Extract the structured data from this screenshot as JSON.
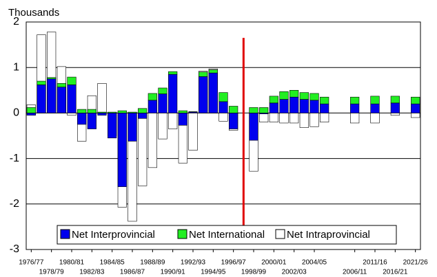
{
  "chart_data": {
    "type": "bar",
    "y_axis_label": "Thousands",
    "categories": [
      "1976/77",
      null,
      "1978/79",
      null,
      "1980/81",
      null,
      "1982/83",
      null,
      "1984/85",
      null,
      "1986/87",
      null,
      "1988/89",
      null,
      "1990/91",
      null,
      "1992/93",
      null,
      "1994/95",
      null,
      "1996/97",
      null,
      "1998/99",
      null,
      "2000/01",
      null,
      "2002/03",
      null,
      "2004/05",
      null,
      null,
      null,
      "2006/11",
      null,
      "2011/16",
      null,
      "2016/21",
      null,
      "2021/26"
    ],
    "series": [
      {
        "name": "Net Interprovincial",
        "color": "#0000ee",
        "values": [
          -0.05,
          0.62,
          0.75,
          0.57,
          0.62,
          -0.25,
          -0.35,
          -0.05,
          -0.55,
          -1.62,
          -0.62,
          -0.12,
          0.28,
          0.42,
          0.85,
          -0.27,
          0.02,
          0.8,
          0.88,
          0.25,
          -0.35,
          null,
          -0.6,
          -0.02,
          0.22,
          0.3,
          0.35,
          0.3,
          0.28,
          0.2,
          null,
          null,
          0.2,
          null,
          0.2,
          null,
          0.22,
          null,
          0.2
        ]
      },
      {
        "name": "Net International",
        "color": "#22ee22",
        "values": [
          0.12,
          0.08,
          0.03,
          0.08,
          0.17,
          0.08,
          0.08,
          0.02,
          0.02,
          0.05,
          0.02,
          0.1,
          0.15,
          0.13,
          0.06,
          0.05,
          0.01,
          0.1,
          0.07,
          0.2,
          0.15,
          null,
          0.12,
          0.12,
          0.15,
          0.17,
          0.15,
          0.15,
          0.15,
          0.15,
          null,
          null,
          0.15,
          null,
          0.17,
          null,
          0.15,
          null,
          0.15
        ]
      },
      {
        "name": "Net Intraprovincial",
        "color": "#ffffff",
        "values": [
          0.18,
          1.72,
          1.78,
          1.02,
          -0.05,
          -0.62,
          0.38,
          0.65,
          -0.5,
          -2.07,
          -2.38,
          -1.6,
          -1.2,
          -0.57,
          -0.35,
          -1.1,
          -0.82,
          0.92,
          0.97,
          -0.18,
          -0.38,
          null,
          -1.28,
          -0.2,
          -0.2,
          -0.22,
          -0.22,
          -0.32,
          -0.3,
          -0.2,
          null,
          null,
          -0.22,
          null,
          -0.22,
          null,
          -0.05,
          null,
          -0.1
        ]
      }
    ],
    "ylim": [
      -3,
      2
    ],
    "yticks": [
      -3,
      -2,
      -1,
      0,
      1,
      2
    ],
    "grid": true
  }
}
